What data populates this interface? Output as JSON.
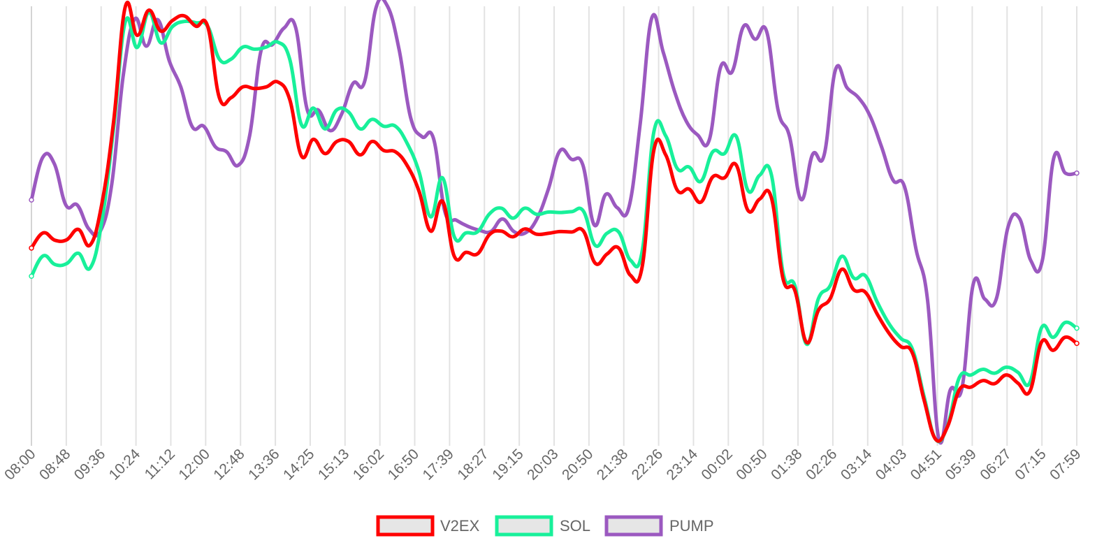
{
  "chart_data": {
    "type": "line",
    "title": "",
    "xlabel": "",
    "ylabel": "",
    "grid": "vertical",
    "legend": "bottom",
    "x_ticks": [
      "08:00",
      "08:48",
      "09:36",
      "10:24",
      "11:12",
      "12:00",
      "12:48",
      "13:36",
      "14:25",
      "15:13",
      "16:02",
      "16:50",
      "17:39",
      "18:27",
      "19:15",
      "20:03",
      "20:50",
      "21:38",
      "22:26",
      "23:14",
      "00:02",
      "00:50",
      "01:38",
      "02:26",
      "03:14",
      "04:03",
      "04:51",
      "05:39",
      "06:27",
      "07:15",
      "07:59"
    ],
    "ylim": [
      0,
      100
    ],
    "series": [
      {
        "name": "V2EX",
        "color": "#ff0000",
        "values": [
          44.2,
          47.7,
          46.0,
          46.1,
          48.5,
          44.9,
          54.5,
          73.5,
          100.0,
          93.3,
          99.1,
          94.3,
          96.7,
          97.8,
          95.4,
          95.4,
          78.9,
          78.9,
          81.4,
          81.0,
          81.4,
          82.5,
          78.4,
          65.4,
          69.3,
          66.0,
          68.8,
          68.8,
          65.7,
          68.8,
          66.7,
          66.4,
          63.2,
          57.3,
          48.1,
          55.0,
          42.3,
          43.2,
          42.9,
          47.3,
          48.1,
          46.8,
          48.6,
          47.4,
          47.6,
          48.0,
          47.9,
          48.1,
          40.7,
          42.8,
          44.2,
          37.9,
          39.9,
          66.9,
          65.7,
          57.5,
          57.8,
          54.8,
          60.6,
          60.4,
          63.4,
          52.9,
          55.5,
          55.8,
          37.0,
          34.4,
          22.4,
          29.8,
          32.5,
          39.3,
          34.6,
          34.0,
          29.0,
          24.6,
          21.5,
          20.0,
          9.1,
          0.0,
          3.0,
          11.5,
          12.1,
          13.6,
          12.9,
          14.9,
          13.0,
          11.1,
          22.5,
          20.6,
          23.6,
          22.2
        ]
      },
      {
        "name": "SOL",
        "color": "#18f09a",
        "values": [
          37.7,
          42.4,
          40.4,
          40.6,
          43.0,
          39.6,
          50.4,
          72.0,
          96.5,
          90.5,
          98.6,
          91.6,
          95.3,
          96.5,
          96.2,
          95.4,
          87.8,
          87.8,
          90.6,
          90.1,
          90.6,
          91.7,
          87.7,
          72.6,
          76.5,
          71.7,
          76.1,
          75.6,
          71.7,
          73.9,
          72.3,
          72.3,
          68.3,
          61.8,
          51.4,
          60.4,
          46.8,
          47.7,
          48.0,
          52.1,
          53.4,
          51.1,
          53.4,
          52.0,
          52.5,
          52.4,
          52.6,
          52.7,
          44.8,
          47.6,
          47.9,
          41.4,
          43.5,
          71.1,
          70.1,
          62.5,
          62.9,
          59.6,
          66.4,
          66.0,
          70.0,
          57.5,
          61.0,
          61.1,
          38.4,
          35.5,
          22.0,
          32.5,
          35.5,
          42.3,
          37.3,
          37.8,
          31.8,
          26.8,
          23.4,
          20.9,
          9.9,
          0.0,
          3.2,
          14.3,
          14.9,
          16.2,
          15.3,
          16.7,
          15.5,
          13.1,
          25.8,
          23.6,
          27.0,
          25.7
        ]
      },
      {
        "name": "PUMP",
        "color": "#9b59c0",
        "values": [
          55.3,
          65.2,
          63.6,
          54.1,
          54.1,
          48.6,
          48.1,
          59.1,
          84.2,
          97.1,
          90.8,
          96.9,
          87.4,
          81.4,
          72.2,
          72.3,
          67.6,
          66.4,
          63.3,
          70.2,
          89.9,
          91.2,
          95.0,
          95.1,
          76.2,
          76.0,
          71.3,
          75.1,
          82.2,
          82.6,
          99.7,
          100.0,
          90.1,
          74.4,
          69.9,
          69.5,
          52.5,
          50.6,
          49.2,
          48.3,
          48.0,
          50.9,
          48.0,
          47.7,
          50.9,
          57.8,
          66.6,
          64.7,
          63.4,
          49.5,
          56.6,
          53.5,
          53.5,
          73.0,
          97.3,
          89.4,
          80.2,
          73.5,
          70.3,
          69.1,
          86.0,
          84.9,
          95.4,
          92.4,
          94.2,
          76.0,
          69.9,
          55.4,
          65.8,
          65.6,
          85.4,
          81.2,
          78.9,
          74.7,
          67.6,
          59.9,
          58.4,
          44.0,
          32.4,
          0.0,
          11.5,
          11.8,
          36.0,
          32.4,
          32.5,
          48.9,
          51.1,
          41.3,
          41.3,
          65.0,
          61.5,
          61.5
        ]
      }
    ]
  }
}
